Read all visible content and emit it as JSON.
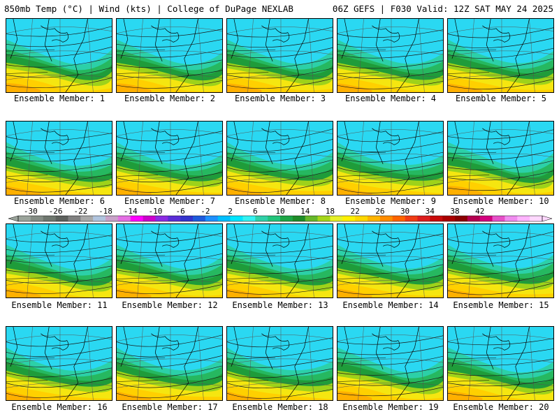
{
  "header": {
    "title_left": "850mb Temp (°C) | Wind (kts) | College of DuPage NEXLAB",
    "title_right": "06Z GEFS | F030 Valid: 12Z SAT MAY 24 2025"
  },
  "panels": [
    {
      "label": "Ensemble Member: 1"
    },
    {
      "label": "Ensemble Member: 2"
    },
    {
      "label": "Ensemble Member: 3"
    },
    {
      "label": "Ensemble Member: 4"
    },
    {
      "label": "Ensemble Member: 5"
    },
    {
      "label": "Ensemble Member: 6"
    },
    {
      "label": "Ensemble Member: 7"
    },
    {
      "label": "Ensemble Member: 8"
    },
    {
      "label": "Ensemble Member: 9"
    },
    {
      "label": "Ensemble Member: 10"
    },
    {
      "label": "Ensemble Member: 11"
    },
    {
      "label": "Ensemble Member: 12"
    },
    {
      "label": "Ensemble Member: 13"
    },
    {
      "label": "Ensemble Member: 14"
    },
    {
      "label": "Ensemble Member: 15"
    },
    {
      "label": "Ensemble Member: 16"
    },
    {
      "label": "Ensemble Member: 17"
    },
    {
      "label": "Ensemble Member: 18"
    },
    {
      "label": "Ensemble Member: 19"
    },
    {
      "label": "Ensemble Member: 20"
    }
  ],
  "colorbar": {
    "tick_labels": [
      "-30",
      "-26",
      "-22",
      "-18",
      "-14",
      "-10",
      "-6",
      "-2",
      "2",
      "6",
      "10",
      "14",
      "18",
      "22",
      "26",
      "30",
      "34",
      "38",
      "42"
    ],
    "colors": [
      "#9aa39a",
      "#848c84",
      "#6e766e",
      "#5c605c",
      "#808080",
      "#a9a9a9",
      "#b0c4de",
      "#c8a2c8",
      "#e36fe3",
      "#ff00ff",
      "#cc00cc",
      "#8a2be2",
      "#5a2dd6",
      "#3333cc",
      "#1e5adc",
      "#1e90ff",
      "#00bfff",
      "#00e5ff",
      "#33f2f2",
      "#30d0a8",
      "#22c47a",
      "#1ea646",
      "#1f8c28",
      "#66b82a",
      "#a6d61a",
      "#e6f028",
      "#fff000",
      "#ffd700",
      "#ffb400",
      "#ff8c00",
      "#ff6400",
      "#f03c14",
      "#dc1e1e",
      "#c80a0a",
      "#aa0000",
      "#8b0000",
      "#b40050",
      "#d2007e",
      "#e650c8",
      "#f08cf0",
      "#ffb4ff",
      "#ffd8ff"
    ]
  },
  "map_colors": {
    "cyan": "#2ad8f2",
    "teal": "#2cd0a8",
    "green_light": "#26b860",
    "green": "#1f9c3a",
    "lime": "#9ed21a",
    "yellow": "#f5e610",
    "gold": "#ffd000",
    "orange": "#ffb000"
  }
}
